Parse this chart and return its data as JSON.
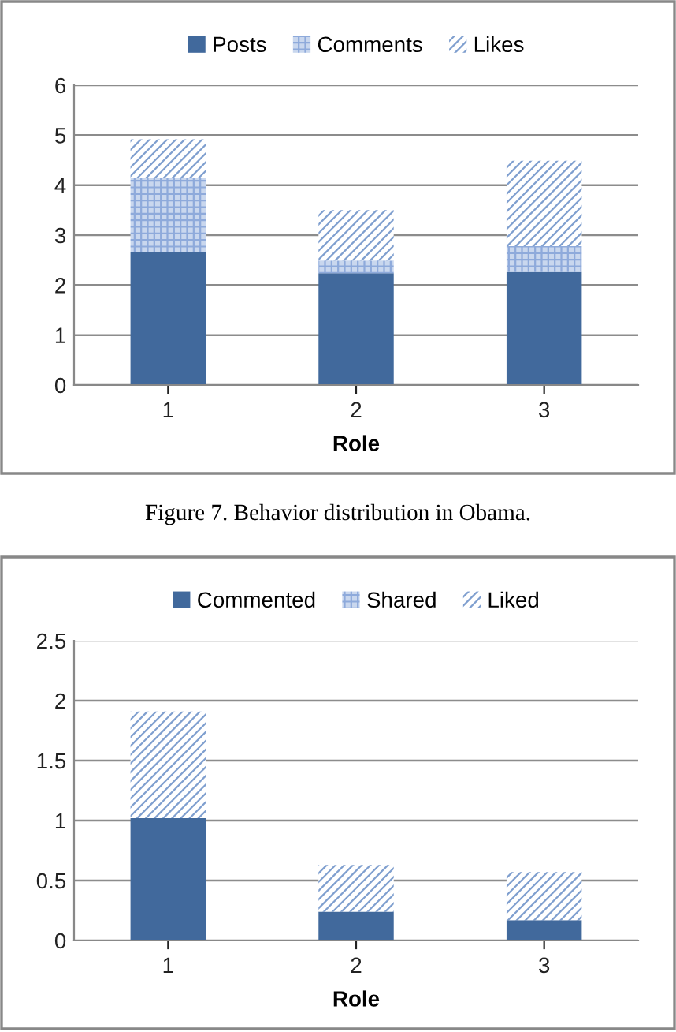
{
  "chart_data": [
    {
      "type": "bar",
      "stacked": true,
      "categories": [
        "1",
        "2",
        "3"
      ],
      "xlabel": "Role",
      "ylim": [
        0,
        6
      ],
      "yticks": [
        0,
        1,
        2,
        3,
        4,
        5,
        6
      ],
      "grid": "y",
      "legend": "top",
      "annotations": [
        "Figure 7. Behavior distribution in Obama."
      ],
      "series": [
        {
          "name": "Posts",
          "color": "#41699c",
          "values": [
            2.66,
            2.24,
            2.26
          ]
        },
        {
          "name": "Comments",
          "color": "#8eaadb",
          "values": [
            1.49,
            0.25,
            0.52
          ]
        },
        {
          "name": "Likes",
          "color": "#7f9fcf",
          "values": [
            0.77,
            1.01,
            1.71
          ]
        }
      ]
    },
    {
      "type": "bar",
      "stacked": true,
      "categories": [
        "1",
        "2",
        "3"
      ],
      "xlabel": "Role",
      "ylim": [
        0,
        2.5
      ],
      "yticks": [
        0,
        0.5,
        1,
        1.5,
        2,
        2.5
      ],
      "grid": "y",
      "legend": "top",
      "series": [
        {
          "name": "Commented",
          "color": "#41699c",
          "values": [
            1.02,
            0.24,
            0.17
          ]
        },
        {
          "name": "Shared",
          "color": "#8eaadb",
          "values": [
            0,
            0,
            0
          ]
        },
        {
          "name": "Liked",
          "color": "#7f9fcf",
          "values": [
            0.89,
            0.39,
            0.4
          ]
        }
      ]
    }
  ]
}
